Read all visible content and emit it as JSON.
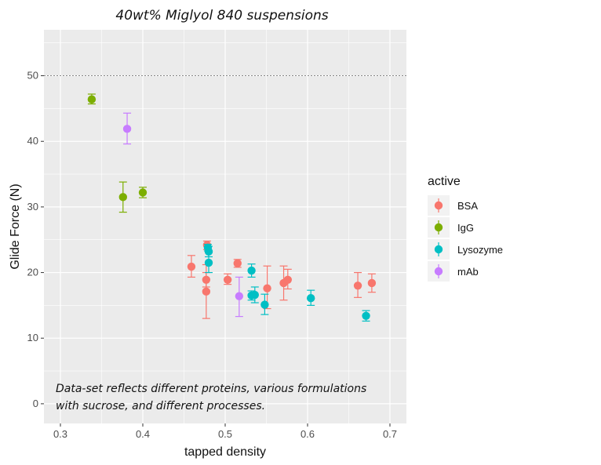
{
  "chart_data": {
    "type": "scatter",
    "title": "40wt% Miglyol 840 suspensions",
    "annotation_line1": "Data-set reflects different proteins, various formulations",
    "annotation_line2": "with sucrose, and different processes.",
    "xlabel": "tapped density",
    "ylabel": "Glide Force (N)",
    "xlim": [
      0.28,
      0.72
    ],
    "ylim": [
      -3,
      57
    ],
    "xticks": [
      "0.3",
      "0.4",
      "0.5",
      "0.6",
      "0.7"
    ],
    "yticks": [
      "0",
      "10",
      "20",
      "30",
      "40",
      "50"
    ],
    "reference_line": 50,
    "grid": true,
    "legend": {
      "title": "active",
      "position": "right"
    },
    "series": [
      {
        "name": "BSA",
        "color": "#F8766D",
        "points": [
          {
            "x": 0.459,
            "y": 20.9,
            "ylo": 19.3,
            "yhi": 22.6
          },
          {
            "x": 0.477,
            "y": 18.9,
            "ylo": 17.8,
            "yhi": 20.0
          },
          {
            "x": 0.477,
            "y": 17.1,
            "ylo": 13.0,
            "yhi": 21.2
          },
          {
            "x": 0.478,
            "y": 24.2,
            "ylo": 23.5,
            "yhi": 24.8
          },
          {
            "x": 0.503,
            "y": 18.9,
            "ylo": 18.2,
            "yhi": 19.8
          },
          {
            "x": 0.515,
            "y": 21.4,
            "ylo": 20.8,
            "yhi": 22.0
          },
          {
            "x": 0.551,
            "y": 17.6,
            "ylo": 14.5,
            "yhi": 21.0
          },
          {
            "x": 0.571,
            "y": 18.4,
            "ylo": 15.8,
            "yhi": 21.0
          },
          {
            "x": 0.576,
            "y": 18.9,
            "ylo": 17.5,
            "yhi": 20.5
          },
          {
            "x": 0.661,
            "y": 18.0,
            "ylo": 16.2,
            "yhi": 20.0
          },
          {
            "x": 0.678,
            "y": 18.4,
            "ylo": 17.0,
            "yhi": 19.8
          }
        ]
      },
      {
        "name": "IgG",
        "color": "#7CAE00",
        "points": [
          {
            "x": 0.338,
            "y": 46.4,
            "ylo": 45.7,
            "yhi": 47.2
          },
          {
            "x": 0.376,
            "y": 31.5,
            "ylo": 29.2,
            "yhi": 33.8
          },
          {
            "x": 0.4,
            "y": 32.2,
            "ylo": 31.4,
            "yhi": 33.0
          }
        ]
      },
      {
        "name": "Lysozyme",
        "color": "#00BFC4",
        "points": [
          {
            "x": 0.479,
            "y": 23.8,
            "ylo": 23.3,
            "yhi": 24.3
          },
          {
            "x": 0.48,
            "y": 23.2,
            "ylo": 22.4,
            "yhi": 24.0
          },
          {
            "x": 0.48,
            "y": 21.5,
            "ylo": 20.0,
            "yhi": 23.0
          },
          {
            "x": 0.532,
            "y": 20.3,
            "ylo": 19.3,
            "yhi": 21.3
          },
          {
            "x": 0.532,
            "y": 16.5,
            "ylo": 15.8,
            "yhi": 17.2
          },
          {
            "x": 0.536,
            "y": 16.6,
            "ylo": 15.4,
            "yhi": 17.8
          },
          {
            "x": 0.548,
            "y": 15.1,
            "ylo": 13.6,
            "yhi": 16.7
          },
          {
            "x": 0.604,
            "y": 16.1,
            "ylo": 15.0,
            "yhi": 17.3
          },
          {
            "x": 0.671,
            "y": 13.4,
            "ylo": 12.6,
            "yhi": 14.2
          }
        ]
      },
      {
        "name": "mAb",
        "color": "#C77CFF",
        "points": [
          {
            "x": 0.381,
            "y": 41.9,
            "ylo": 39.6,
            "yhi": 44.3
          },
          {
            "x": 0.517,
            "y": 16.4,
            "ylo": 13.3,
            "yhi": 19.3
          }
        ]
      }
    ]
  }
}
